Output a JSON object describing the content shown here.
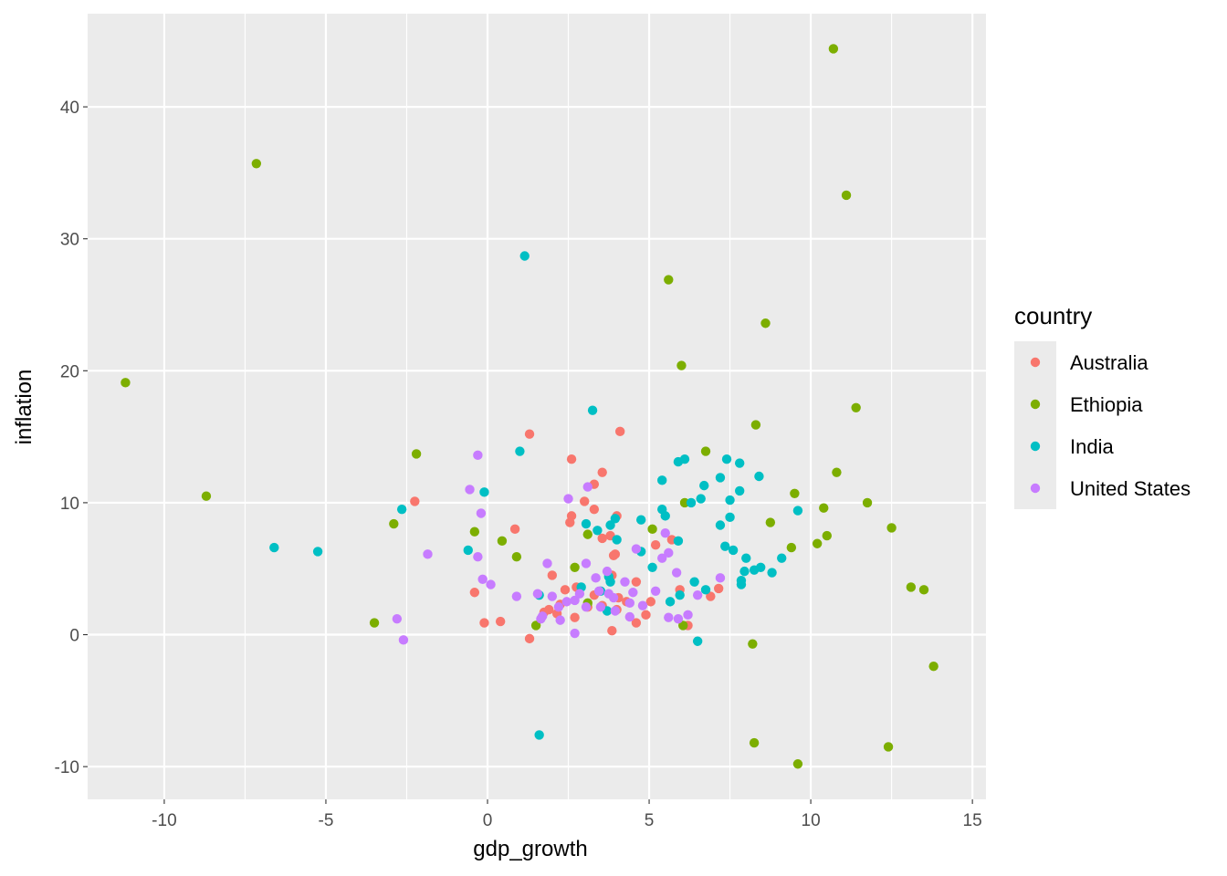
{
  "chart_data": {
    "type": "scatter",
    "title": "",
    "xlabel": "gdp_growth",
    "ylabel": "inflation",
    "xlim": [
      -12.37,
      15.42
    ],
    "ylim": [
      -12.48,
      47.06
    ],
    "x_ticks": [
      -10,
      -5,
      0,
      5,
      10,
      15
    ],
    "x_tick_labels": [
      "-10",
      "-5",
      "0",
      "5",
      "10",
      "15"
    ],
    "y_ticks": [
      -10,
      0,
      10,
      20,
      30,
      40
    ],
    "y_tick_labels": [
      "-10",
      "0",
      "10",
      "20",
      "30",
      "40"
    ],
    "grid": true,
    "legend": {
      "title": "country",
      "placement": "right"
    },
    "series": [
      {
        "name": "Australia",
        "color": "#F8766D",
        "points": [
          [
            1.3,
            15.2
          ],
          [
            4.1,
            15.4
          ],
          [
            2.6,
            13.3
          ],
          [
            3.55,
            12.3
          ],
          [
            3.3,
            11.4
          ],
          [
            3.0,
            10.1
          ],
          [
            3.3,
            9.5
          ],
          [
            -2.25,
            10.1
          ],
          [
            4.0,
            9.0
          ],
          [
            2.6,
            9.0
          ],
          [
            2.55,
            8.5
          ],
          [
            0.85,
            8.0
          ],
          [
            3.8,
            7.5
          ],
          [
            3.55,
            7.3
          ],
          [
            5.7,
            7.2
          ],
          [
            5.2,
            6.8
          ],
          [
            3.95,
            6.1
          ],
          [
            3.9,
            6.0
          ],
          [
            2.0,
            4.5
          ],
          [
            3.85,
            4.5
          ],
          [
            4.6,
            4.0
          ],
          [
            -0.4,
            3.2
          ],
          [
            5.95,
            3.4
          ],
          [
            7.15,
            3.5
          ],
          [
            6.9,
            2.9
          ],
          [
            5.05,
            2.5
          ],
          [
            4.9,
            1.5
          ],
          [
            2.7,
            1.3
          ],
          [
            4.6,
            0.9
          ],
          [
            3.85,
            0.3
          ],
          [
            -0.1,
            0.9
          ],
          [
            0.4,
            1.0
          ],
          [
            1.3,
            -0.3
          ],
          [
            6.2,
            0.7
          ],
          [
            2.4,
            3.4
          ],
          [
            1.9,
            1.9
          ],
          [
            3.1,
            2.1
          ],
          [
            4.3,
            2.5
          ],
          [
            2.25,
            2.3
          ],
          [
            3.55,
            2.2
          ],
          [
            4.0,
            1.9
          ],
          [
            2.75,
            3.6
          ],
          [
            1.75,
            1.7
          ],
          [
            3.3,
            3.0
          ],
          [
            4.05,
            2.8
          ],
          [
            2.15,
            1.6
          ]
        ]
      },
      {
        "name": "Ethiopia",
        "color": "#7CAE00",
        "points": [
          [
            10.7,
            44.4
          ],
          [
            -7.15,
            35.7
          ],
          [
            11.1,
            33.3
          ],
          [
            5.6,
            26.9
          ],
          [
            8.6,
            23.6
          ],
          [
            6.0,
            20.4
          ],
          [
            -11.2,
            19.1
          ],
          [
            11.4,
            17.2
          ],
          [
            8.3,
            15.9
          ],
          [
            6.75,
            13.9
          ],
          [
            -2.2,
            13.7
          ],
          [
            10.8,
            12.3
          ],
          [
            -8.7,
            10.5
          ],
          [
            9.5,
            10.7
          ],
          [
            6.1,
            10.0
          ],
          [
            11.75,
            10.0
          ],
          [
            10.4,
            9.6
          ],
          [
            8.75,
            8.5
          ],
          [
            -2.9,
            8.4
          ],
          [
            12.5,
            8.1
          ],
          [
            5.1,
            8.0
          ],
          [
            -0.4,
            7.8
          ],
          [
            3.1,
            7.6
          ],
          [
            10.5,
            7.5
          ],
          [
            0.45,
            7.1
          ],
          [
            10.2,
            6.9
          ],
          [
            9.4,
            6.6
          ],
          [
            0.9,
            5.9
          ],
          [
            2.7,
            5.1
          ],
          [
            13.1,
            3.6
          ],
          [
            13.5,
            3.4
          ],
          [
            3.1,
            2.4
          ],
          [
            -3.5,
            0.9
          ],
          [
            1.5,
            0.7
          ],
          [
            6.05,
            0.7
          ],
          [
            8.2,
            -0.7
          ],
          [
            13.8,
            -2.4
          ],
          [
            8.25,
            -8.2
          ],
          [
            12.4,
            -8.5
          ],
          [
            9.6,
            -9.8
          ]
        ]
      },
      {
        "name": "India",
        "color": "#00BFC4",
        "points": [
          [
            1.15,
            28.7
          ],
          [
            3.25,
            17.0
          ],
          [
            1.0,
            13.9
          ],
          [
            7.4,
            13.3
          ],
          [
            7.8,
            13.0
          ],
          [
            5.9,
            13.1
          ],
          [
            6.1,
            13.3
          ],
          [
            7.2,
            11.9
          ],
          [
            8.4,
            12.0
          ],
          [
            5.4,
            11.7
          ],
          [
            6.7,
            11.3
          ],
          [
            -0.1,
            10.8
          ],
          [
            7.8,
            10.9
          ],
          [
            7.5,
            10.2
          ],
          [
            6.3,
            10.0
          ],
          [
            6.6,
            10.3
          ],
          [
            -2.65,
            9.5
          ],
          [
            5.4,
            9.5
          ],
          [
            9.6,
            9.4
          ],
          [
            5.5,
            9.0
          ],
          [
            4.75,
            8.7
          ],
          [
            7.5,
            8.9
          ],
          [
            7.2,
            8.3
          ],
          [
            3.05,
            8.4
          ],
          [
            3.8,
            8.3
          ],
          [
            3.4,
            7.9
          ],
          [
            3.95,
            8.8
          ],
          [
            4.0,
            7.2
          ],
          [
            5.9,
            7.1
          ],
          [
            -6.6,
            6.6
          ],
          [
            -5.25,
            6.3
          ],
          [
            -0.6,
            6.4
          ],
          [
            7.35,
            6.7
          ],
          [
            7.6,
            6.4
          ],
          [
            4.75,
            6.3
          ],
          [
            8.0,
            5.8
          ],
          [
            9.1,
            5.8
          ],
          [
            5.1,
            5.1
          ],
          [
            8.45,
            5.1
          ],
          [
            7.95,
            4.8
          ],
          [
            8.25,
            4.9
          ],
          [
            8.8,
            4.7
          ],
          [
            7.85,
            4.1
          ],
          [
            7.85,
            3.8
          ],
          [
            6.4,
            4.0
          ],
          [
            3.8,
            4.0
          ],
          [
            2.9,
            3.6
          ],
          [
            6.75,
            3.4
          ],
          [
            5.95,
            3.0
          ],
          [
            5.65,
            2.5
          ],
          [
            3.7,
            1.8
          ],
          [
            1.6,
            3.0
          ],
          [
            6.5,
            -0.5
          ],
          [
            1.6,
            -7.6
          ],
          [
            3.75,
            4.4
          ],
          [
            3.5,
            3.3
          ]
        ]
      },
      {
        "name": "United States",
        "color": "#C77CFF",
        "points": [
          [
            -0.3,
            13.6
          ],
          [
            -0.55,
            11.0
          ],
          [
            3.1,
            11.2
          ],
          [
            2.5,
            10.3
          ],
          [
            -0.2,
            9.2
          ],
          [
            5.5,
            7.7
          ],
          [
            -1.85,
            6.1
          ],
          [
            -0.3,
            5.9
          ],
          [
            5.6,
            6.2
          ],
          [
            4.6,
            6.5
          ],
          [
            5.4,
            5.8
          ],
          [
            1.85,
            5.4
          ],
          [
            3.05,
            5.4
          ],
          [
            -0.15,
            4.2
          ],
          [
            0.1,
            3.8
          ],
          [
            3.35,
            4.3
          ],
          [
            3.7,
            4.8
          ],
          [
            4.25,
            4.0
          ],
          [
            5.85,
            4.7
          ],
          [
            7.2,
            4.3
          ],
          [
            0.9,
            2.9
          ],
          [
            1.55,
            3.1
          ],
          [
            5.2,
            3.3
          ],
          [
            4.5,
            3.2
          ],
          [
            2.0,
            2.9
          ],
          [
            2.45,
            2.5
          ],
          [
            3.45,
            3.3
          ],
          [
            3.9,
            2.8
          ],
          [
            4.4,
            2.4
          ],
          [
            4.8,
            2.2
          ],
          [
            6.5,
            3.0
          ],
          [
            2.2,
            2.1
          ],
          [
            2.7,
            2.6
          ],
          [
            3.05,
            2.1
          ],
          [
            3.5,
            2.1
          ],
          [
            3.95,
            1.8
          ],
          [
            4.4,
            1.35
          ],
          [
            5.6,
            1.3
          ],
          [
            5.9,
            1.2
          ],
          [
            6.2,
            1.5
          ],
          [
            1.7,
            1.4
          ],
          [
            1.65,
            1.2
          ],
          [
            2.25,
            1.1
          ],
          [
            -2.8,
            1.2
          ],
          [
            -2.6,
            -0.4
          ],
          [
            2.7,
            0.1
          ],
          [
            2.85,
            3.1
          ],
          [
            3.75,
            3.1
          ]
        ]
      }
    ]
  }
}
